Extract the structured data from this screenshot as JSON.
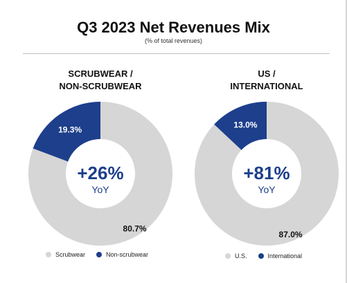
{
  "colors": {
    "navy": "#1d3f8c",
    "gray": "#d6d6d6",
    "white": "#ffffff",
    "accent_text": "#1d3f8c"
  },
  "header": {
    "title": "Q3 2023 Net Revenues Mix",
    "subtitle": "(% of total revenues)"
  },
  "chart_data": [
    {
      "type": "pie",
      "title_line1": "SCRUBWEAR /",
      "title_line2": "NON-SCRUBWEAR",
      "center_value": "+26%",
      "center_label": "YoY",
      "slices": [
        {
          "name": "Scrubwear",
          "value": 80.7,
          "label": "80.7%",
          "color": "#d6d6d6"
        },
        {
          "name": "Non-scrubwear",
          "value": 19.3,
          "label": "19.3%",
          "color": "#1d3f8c"
        }
      ],
      "legend": [
        "Scrubwear",
        "Non-scrubwear"
      ]
    },
    {
      "type": "pie",
      "title_line1": "US /",
      "title_line2": "INTERNATIONAL",
      "center_value": "+81%",
      "center_label": "YoY",
      "slices": [
        {
          "name": "U.S.",
          "value": 87.0,
          "label": "87.0%",
          "color": "#d6d6d6"
        },
        {
          "name": "International",
          "value": 13.0,
          "label": "13.0%",
          "color": "#1d3f8c"
        }
      ],
      "legend": [
        "U.S.",
        "International"
      ]
    }
  ]
}
